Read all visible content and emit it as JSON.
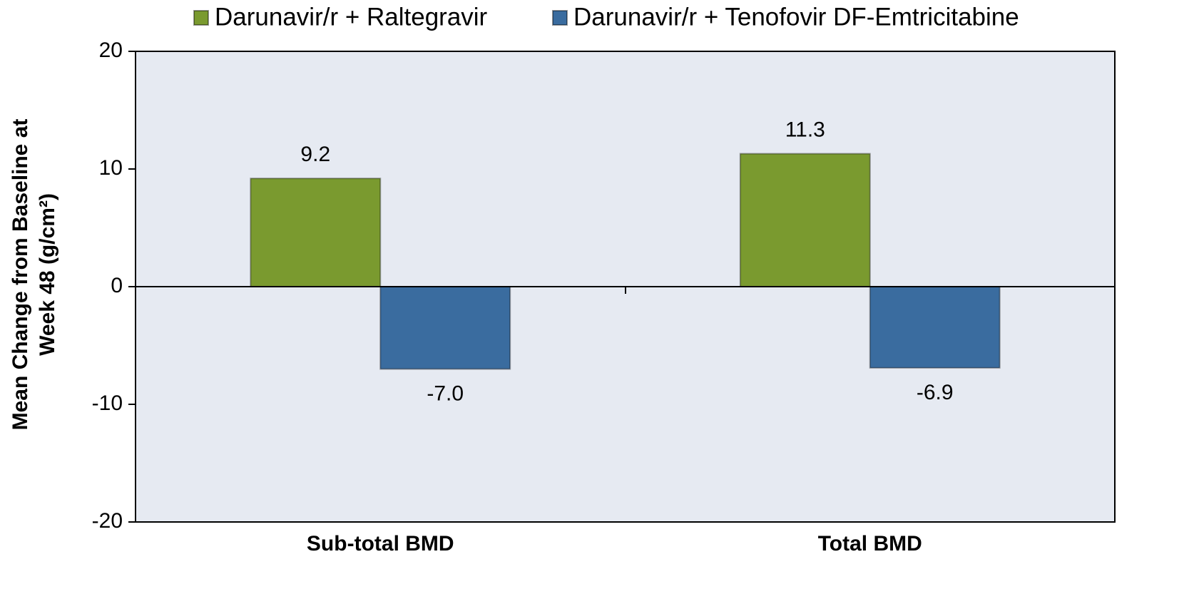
{
  "chart_data": {
    "type": "bar",
    "ylabel": [
      "Mean Change from Baseline at",
      "Week 48 (g/cm²)"
    ],
    "categories": [
      "Sub-total BMD",
      "Total BMD"
    ],
    "series": [
      {
        "name": "Darunavir/r + Raltegravir",
        "color": "#7a9a2f",
        "values": [
          9.2,
          11.3
        ],
        "value_labels": [
          "9.2",
          "11.3"
        ]
      },
      {
        "name": "Darunavir/r + Tenofovir DF-Emtricitabine",
        "color": "#3a6c9f",
        "values": [
          -7.0,
          -6.9
        ],
        "value_labels": [
          "-7.0",
          "-6.9"
        ]
      }
    ],
    "ylim": [
      -20,
      20
    ],
    "yticks": [
      -20,
      -10,
      0,
      10,
      20
    ],
    "legend": "top"
  }
}
